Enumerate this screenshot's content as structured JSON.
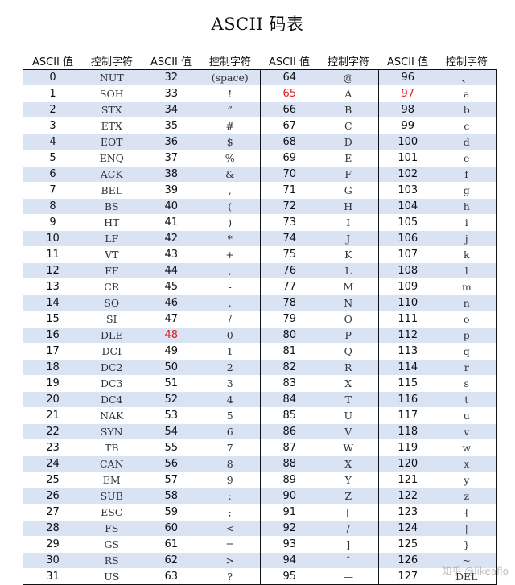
{
  "title": "ASCII 码表",
  "headers": [
    "ASCII 值",
    "控制字符",
    "ASCII 值",
    "控制字符",
    "ASCII 值",
    "控制字符",
    "ASCII 值",
    "控制字符"
  ],
  "highlight_color": "#e02020",
  "band_color": "#dae3f3",
  "highlighted_values": [
    "48",
    "65",
    "97"
  ],
  "rows": [
    {
      "c1": "0",
      "s1": "NUT",
      "c2": "32",
      "s2": "(space)",
      "c3": "64",
      "s3": "@",
      "c4": "96",
      "s4": "、"
    },
    {
      "c1": "1",
      "s1": "SOH",
      "c2": "33",
      "s2": "!",
      "c3": "65",
      "s3": "A",
      "c4": "97",
      "s4": "a"
    },
    {
      "c1": "2",
      "s1": "STX",
      "c2": "34",
      "s2": "”",
      "c3": "66",
      "s3": "B",
      "c4": "98",
      "s4": "b"
    },
    {
      "c1": "3",
      "s1": "ETX",
      "c2": "35",
      "s2": "#",
      "c3": "67",
      "s3": "C",
      "c4": "99",
      "s4": "c"
    },
    {
      "c1": "4",
      "s1": "EOT",
      "c2": "36",
      "s2": "$",
      "c3": "68",
      "s3": "D",
      "c4": "100",
      "s4": "d"
    },
    {
      "c1": "5",
      "s1": "ENQ",
      "c2": "37",
      "s2": "%",
      "c3": "69",
      "s3": "E",
      "c4": "101",
      "s4": "e"
    },
    {
      "c1": "6",
      "s1": "ACK",
      "c2": "38",
      "s2": "&",
      "c3": "70",
      "s3": "F",
      "c4": "102",
      "s4": "f"
    },
    {
      "c1": "7",
      "s1": "BEL",
      "c2": "39",
      "s2": ",",
      "c3": "71",
      "s3": "G",
      "c4": "103",
      "s4": "g"
    },
    {
      "c1": "8",
      "s1": "BS",
      "c2": "40",
      "s2": "(",
      "c3": "72",
      "s3": "H",
      "c4": "104",
      "s4": "h"
    },
    {
      "c1": "9",
      "s1": "HT",
      "c2": "41",
      "s2": ")",
      "c3": "73",
      "s3": "I",
      "c4": "105",
      "s4": "i"
    },
    {
      "c1": "10",
      "s1": "LF",
      "c2": "42",
      "s2": "*",
      "c3": "74",
      "s3": "J",
      "c4": "106",
      "s4": "j"
    },
    {
      "c1": "11",
      "s1": "VT",
      "c2": "43",
      "s2": "+",
      "c3": "75",
      "s3": "K",
      "c4": "107",
      "s4": "k"
    },
    {
      "c1": "12",
      "s1": "FF",
      "c2": "44",
      "s2": ",",
      "c3": "76",
      "s3": "L",
      "c4": "108",
      "s4": "l"
    },
    {
      "c1": "13",
      "s1": "CR",
      "c2": "45",
      "s2": "-",
      "c3": "77",
      "s3": "M",
      "c4": "109",
      "s4": "m"
    },
    {
      "c1": "14",
      "s1": "SO",
      "c2": "46",
      "s2": ".",
      "c3": "78",
      "s3": "N",
      "c4": "110",
      "s4": "n"
    },
    {
      "c1": "15",
      "s1": "SI",
      "c2": "47",
      "s2": "/",
      "c3": "79",
      "s3": "O",
      "c4": "111",
      "s4": "o"
    },
    {
      "c1": "16",
      "s1": "DLE",
      "c2": "48",
      "s2": "0",
      "c3": "80",
      "s3": "P",
      "c4": "112",
      "s4": "p"
    },
    {
      "c1": "17",
      "s1": "DCI",
      "c2": "49",
      "s2": "1",
      "c3": "81",
      "s3": "Q",
      "c4": "113",
      "s4": "q"
    },
    {
      "c1": "18",
      "s1": "DC2",
      "c2": "50",
      "s2": "2",
      "c3": "82",
      "s3": "R",
      "c4": "114",
      "s4": "r"
    },
    {
      "c1": "19",
      "s1": "DC3",
      "c2": "51",
      "s2": "3",
      "c3": "83",
      "s3": "X",
      "c4": "115",
      "s4": "s"
    },
    {
      "c1": "20",
      "s1": "DC4",
      "c2": "52",
      "s2": "4",
      "c3": "84",
      "s3": "T",
      "c4": "116",
      "s4": "t"
    },
    {
      "c1": "21",
      "s1": "NAK",
      "c2": "53",
      "s2": "5",
      "c3": "85",
      "s3": "U",
      "c4": "117",
      "s4": "u"
    },
    {
      "c1": "22",
      "s1": "SYN",
      "c2": "54",
      "s2": "6",
      "c3": "86",
      "s3": "V",
      "c4": "118",
      "s4": "v"
    },
    {
      "c1": "23",
      "s1": "TB",
      "c2": "55",
      "s2": "7",
      "c3": "87",
      "s3": "W",
      "c4": "119",
      "s4": "w"
    },
    {
      "c1": "24",
      "s1": "CAN",
      "c2": "56",
      "s2": "8",
      "c3": "88",
      "s3": "X",
      "c4": "120",
      "s4": "x"
    },
    {
      "c1": "25",
      "s1": "EM",
      "c2": "57",
      "s2": "9",
      "c3": "89",
      "s3": "Y",
      "c4": "121",
      "s4": "y"
    },
    {
      "c1": "26",
      "s1": "SUB",
      "c2": "58",
      "s2": ":",
      "c3": "90",
      "s3": "Z",
      "c4": "122",
      "s4": "z"
    },
    {
      "c1": "27",
      "s1": "ESC",
      "c2": "59",
      "s2": ";",
      "c3": "91",
      "s3": "[",
      "c4": "123",
      "s4": "{"
    },
    {
      "c1": "28",
      "s1": "FS",
      "c2": "60",
      "s2": "<",
      "c3": "92",
      "s3": "/",
      "c4": "124",
      "s4": "|"
    },
    {
      "c1": "29",
      "s1": "GS",
      "c2": "61",
      "s2": "=",
      "c3": "93",
      "s3": "]",
      "c4": "125",
      "s4": "}"
    },
    {
      "c1": "30",
      "s1": "RS",
      "c2": "62",
      "s2": ">",
      "c3": "94",
      "s3": "ˆ",
      "c4": "126",
      "s4": "~"
    },
    {
      "c1": "31",
      "s1": "US",
      "c2": "63",
      "s2": "?",
      "c3": "95",
      "s3": "—",
      "c4": "127",
      "s4": "DEL"
    }
  ],
  "watermark": "知乎 @likeaflo"
}
